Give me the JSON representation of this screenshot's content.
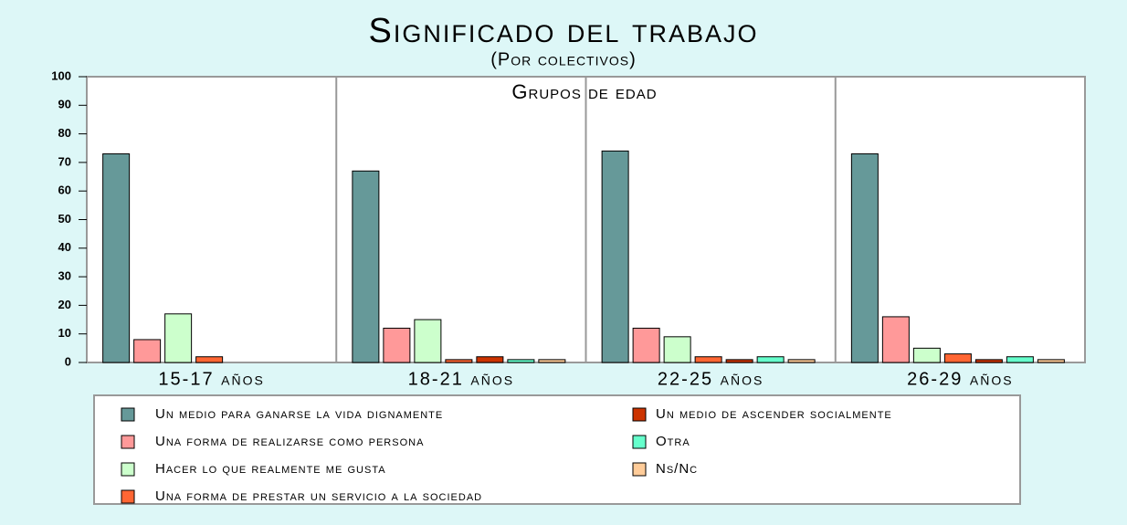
{
  "chart_data": {
    "type": "bar",
    "title": "Significado del trabajo",
    "subtitle": "(Por colectivos)",
    "annotation": "Grupos de edad",
    "categories": [
      "15-17 años",
      "18-21 años",
      "22-25 años",
      "26-29 años"
    ],
    "series": [
      {
        "name": "Un medio para ganarse la vida dignamente",
        "color": "#669999",
        "values": [
          73,
          67,
          74,
          73
        ]
      },
      {
        "name": "Una forma de realizarse como persona",
        "color": "#ff9999",
        "values": [
          8,
          12,
          12,
          16
        ]
      },
      {
        "name": "Hacer lo que realmente me gusta",
        "color": "#ccffcc",
        "values": [
          17,
          15,
          9,
          5
        ]
      },
      {
        "name": "Una forma de prestar un servicio a la sociedad",
        "color": "#ff6633",
        "values": [
          2,
          1,
          2,
          3
        ]
      },
      {
        "name": "Un medio de ascender socialmente",
        "color": "#cc3300",
        "values": [
          0,
          2,
          1,
          1
        ]
      },
      {
        "name": "Otra",
        "color": "#66ffcc",
        "values": [
          0,
          1,
          2,
          2
        ]
      },
      {
        "name": "Ns/Nc",
        "color": "#ffcc99",
        "values": [
          0,
          1,
          1,
          1
        ]
      }
    ],
    "ylim": [
      0,
      100
    ],
    "yticks": [
      0,
      10,
      20,
      30,
      40,
      50,
      60,
      70,
      80,
      90,
      100
    ]
  }
}
